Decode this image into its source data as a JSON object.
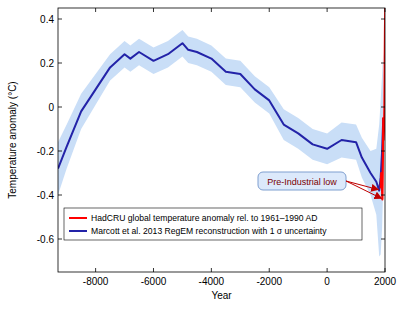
{
  "chart_data": {
    "type": "line",
    "x_label": "Year",
    "y_label": "Temperature anomaly (°C)",
    "xlim": [
      -9300,
      2000
    ],
    "xticks": [
      -8000,
      -6000,
      -4000,
      -2000,
      0,
      2000
    ],
    "ylim": [
      -0.75,
      0.45
    ],
    "yticks": [
      0.4,
      0.2,
      0,
      -0.2,
      -0.4,
      -0.6
    ],
    "grid": false,
    "legend": "lower right",
    "annotations": [
      {
        "text": "Pre-Industrial low"
      }
    ],
    "series": [
      {
        "name": "Marcott et al. 2013 RegEM reconstruction with 1 σ uncertainty",
        "color": "#2323a8",
        "x": [
          -9300,
          -9000,
          -8500,
          -8000,
          -7500,
          -7000,
          -6800,
          -6500,
          -6000,
          -5500,
          -5000,
          -4800,
          -4500,
          -4000,
          -3500,
          -3000,
          -2500,
          -2000,
          -1500,
          -1000,
          -500,
          0,
          500,
          1000,
          1200,
          1500,
          1700,
          1800,
          1850,
          1900,
          1940
        ],
        "values": [
          -0.28,
          -0.18,
          -0.02,
          0.08,
          0.18,
          0.24,
          0.22,
          0.25,
          0.21,
          0.24,
          0.29,
          0.26,
          0.25,
          0.22,
          0.16,
          0.15,
          0.08,
          0.03,
          -0.08,
          -0.12,
          -0.17,
          -0.19,
          -0.15,
          -0.16,
          -0.23,
          -0.3,
          -0.34,
          -0.38,
          -0.32,
          -0.2,
          -0.05
        ],
        "error": [
          0.12,
          0.1,
          0.08,
          0.07,
          0.06,
          0.06,
          0.06,
          0.06,
          0.06,
          0.06,
          0.06,
          0.06,
          0.06,
          0.06,
          0.06,
          0.06,
          0.06,
          0.06,
          0.07,
          0.07,
          0.07,
          0.07,
          0.08,
          0.08,
          0.09,
          0.1,
          0.15,
          0.3,
          0.35,
          0.35,
          0.3
        ]
      },
      {
        "name": "HadCRU global temperature anomaly rel. to 1961–1990 AD",
        "color": "#ff0000",
        "x": [
          1850,
          1870,
          1890,
          1900,
          1910,
          1930,
          1940,
          1950,
          1970,
          1980,
          1990,
          2000,
          2010
        ],
        "values": [
          -0.37,
          -0.3,
          -0.36,
          -0.38,
          -0.42,
          -0.2,
          -0.05,
          -0.15,
          -0.08,
          0.0,
          0.18,
          0.35,
          0.45
        ]
      }
    ]
  }
}
